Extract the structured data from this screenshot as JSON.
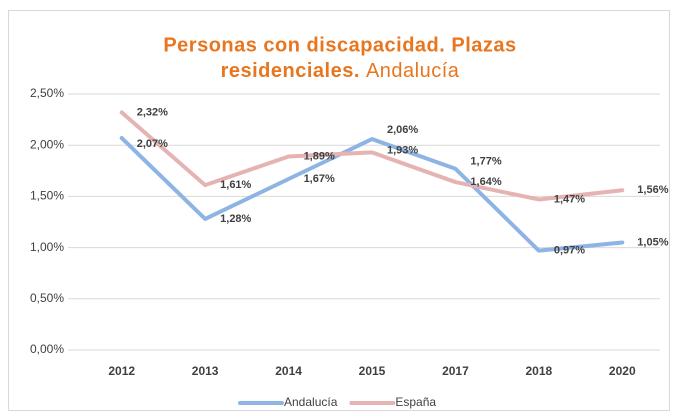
{
  "chart_data": {
    "type": "line",
    "title": [
      "Personas con discapacidad. Plazas",
      "residenciales."
    ],
    "subtitle": "Andalucía",
    "categories": [
      "2012",
      "2013",
      "2014",
      "2015",
      "2017",
      "2018",
      "2020"
    ],
    "series": [
      {
        "name": "Andalucía",
        "color": "#8eb4e3",
        "values": [
          2.07,
          1.28,
          1.67,
          2.06,
          1.77,
          0.97,
          1.05
        ],
        "value_labels": [
          "2,07%",
          "1,28%",
          "1,67%",
          "2,06%",
          "1,77%",
          "0,97%",
          "1,05%"
        ]
      },
      {
        "name": "España",
        "color": "#e6b3b3",
        "values": [
          2.32,
          1.61,
          1.89,
          1.93,
          1.64,
          1.47,
          1.56
        ],
        "value_labels": [
          "2,32%",
          "1,61%",
          "1,89%",
          "1,93%",
          "1,64%",
          "1,47%",
          "1,56%"
        ]
      }
    ],
    "ylim": [
      0,
      2.5
    ],
    "yticks": [
      {
        "value": 0,
        "label": "0,00%"
      },
      {
        "value": 0.5,
        "label": "0,50%"
      },
      {
        "value": 1,
        "label": "1,00%"
      },
      {
        "value": 1.5,
        "label": "1,50%"
      },
      {
        "value": 2,
        "label": "2,00%"
      },
      {
        "value": 2.5,
        "label": "2,50%"
      }
    ],
    "grid": true,
    "legend": "bottom"
  }
}
